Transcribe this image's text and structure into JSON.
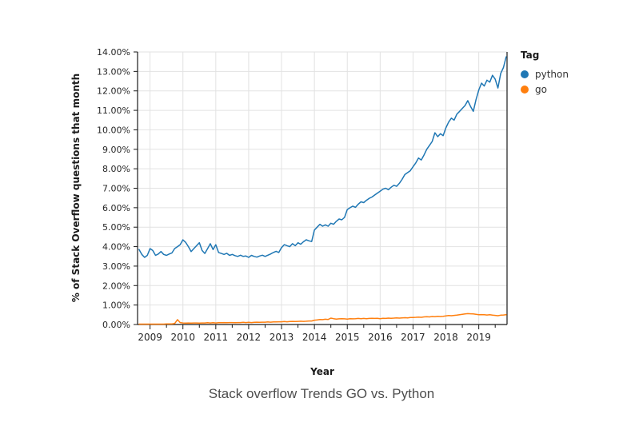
{
  "chart_data": {
    "type": "line",
    "title": "Stack overflow Trends GO vs. Python",
    "xlabel": "Year",
    "ylabel": "% of Stack Overflow questions that month",
    "legend_title": "Tag",
    "legend_position": "right",
    "grid": true,
    "ylim": [
      0,
      14
    ],
    "y_ticks": [
      "0.00%",
      "1.00%",
      "2.00%",
      "3.00%",
      "4.00%",
      "5.00%",
      "6.00%",
      "7.00%",
      "8.00%",
      "9.00%",
      "10.00%",
      "11.00%",
      "12.00%",
      "13.00%",
      "14.00%"
    ],
    "x_ticks": [
      2009,
      2010,
      2011,
      2012,
      2013,
      2014,
      2015,
      2016,
      2017,
      2018,
      2019
    ],
    "x_range": [
      2008.62,
      2019.86
    ],
    "x_unit": "decimal_year_monthly",
    "x_start": 2008.6667,
    "x_step": 0.083333,
    "series": [
      {
        "name": "python",
        "color": "#1f77b4",
        "values": [
          3.85,
          3.6,
          3.45,
          3.55,
          3.9,
          3.8,
          3.55,
          3.62,
          3.75,
          3.6,
          3.55,
          3.62,
          3.68,
          3.9,
          4.0,
          4.1,
          4.35,
          4.22,
          4.0,
          3.75,
          3.9,
          4.05,
          4.2,
          3.8,
          3.65,
          3.9,
          4.15,
          3.85,
          4.1,
          3.7,
          3.65,
          3.6,
          3.66,
          3.55,
          3.6,
          3.54,
          3.5,
          3.56,
          3.5,
          3.52,
          3.45,
          3.55,
          3.5,
          3.46,
          3.52,
          3.56,
          3.5,
          3.56,
          3.62,
          3.7,
          3.76,
          3.7,
          3.95,
          4.1,
          4.05,
          4.0,
          4.15,
          4.05,
          4.2,
          4.12,
          4.25,
          4.35,
          4.3,
          4.26,
          4.85,
          5.0,
          5.15,
          5.05,
          5.12,
          5.05,
          5.2,
          5.15,
          5.3,
          5.42,
          5.38,
          5.5,
          5.9,
          6.0,
          6.08,
          6.02,
          6.18,
          6.3,
          6.26,
          6.38,
          6.48,
          6.55,
          6.65,
          6.75,
          6.85,
          6.95,
          7.0,
          6.92,
          7.05,
          7.15,
          7.1,
          7.25,
          7.45,
          7.7,
          7.8,
          7.9,
          8.1,
          8.3,
          8.55,
          8.45,
          8.7,
          9.0,
          9.2,
          9.4,
          9.85,
          9.65,
          9.8,
          9.7,
          10.1,
          10.4,
          10.6,
          10.5,
          10.8,
          10.95,
          11.1,
          11.25,
          11.5,
          11.2,
          10.95,
          11.55,
          12.05,
          12.4,
          12.25,
          12.55,
          12.45,
          12.8,
          12.6,
          12.15,
          12.9,
          13.2,
          13.75
        ]
      },
      {
        "name": "go",
        "color": "#ff7f0e",
        "values": [
          0.02,
          0.02,
          0.02,
          0.02,
          0.02,
          0.02,
          0.02,
          0.02,
          0.02,
          0.02,
          0.03,
          0.03,
          0.03,
          0.05,
          0.25,
          0.1,
          0.08,
          0.07,
          0.08,
          0.07,
          0.08,
          0.08,
          0.07,
          0.08,
          0.08,
          0.09,
          0.08,
          0.09,
          0.08,
          0.09,
          0.09,
          0.1,
          0.09,
          0.1,
          0.1,
          0.09,
          0.1,
          0.1,
          0.11,
          0.1,
          0.11,
          0.1,
          0.11,
          0.12,
          0.11,
          0.12,
          0.12,
          0.13,
          0.12,
          0.13,
          0.13,
          0.14,
          0.14,
          0.15,
          0.14,
          0.15,
          0.16,
          0.15,
          0.16,
          0.17,
          0.16,
          0.17,
          0.18,
          0.18,
          0.22,
          0.24,
          0.26,
          0.25,
          0.27,
          0.26,
          0.33,
          0.3,
          0.28,
          0.29,
          0.3,
          0.29,
          0.28,
          0.3,
          0.29,
          0.3,
          0.31,
          0.3,
          0.31,
          0.3,
          0.31,
          0.32,
          0.31,
          0.32,
          0.3,
          0.32,
          0.31,
          0.33,
          0.32,
          0.33,
          0.34,
          0.33,
          0.34,
          0.35,
          0.34,
          0.36,
          0.36,
          0.37,
          0.38,
          0.37,
          0.39,
          0.4,
          0.39,
          0.41,
          0.4,
          0.42,
          0.41,
          0.42,
          0.44,
          0.46,
          0.45,
          0.47,
          0.48,
          0.5,
          0.52,
          0.54,
          0.56,
          0.55,
          0.54,
          0.52,
          0.5,
          0.51,
          0.5,
          0.49,
          0.5,
          0.48,
          0.47,
          0.45,
          0.48,
          0.49,
          0.5
        ]
      }
    ],
    "colors": {
      "grid": "#e2e2e2",
      "axis": "#1a1a1a",
      "tick_label": "#262626"
    }
  }
}
